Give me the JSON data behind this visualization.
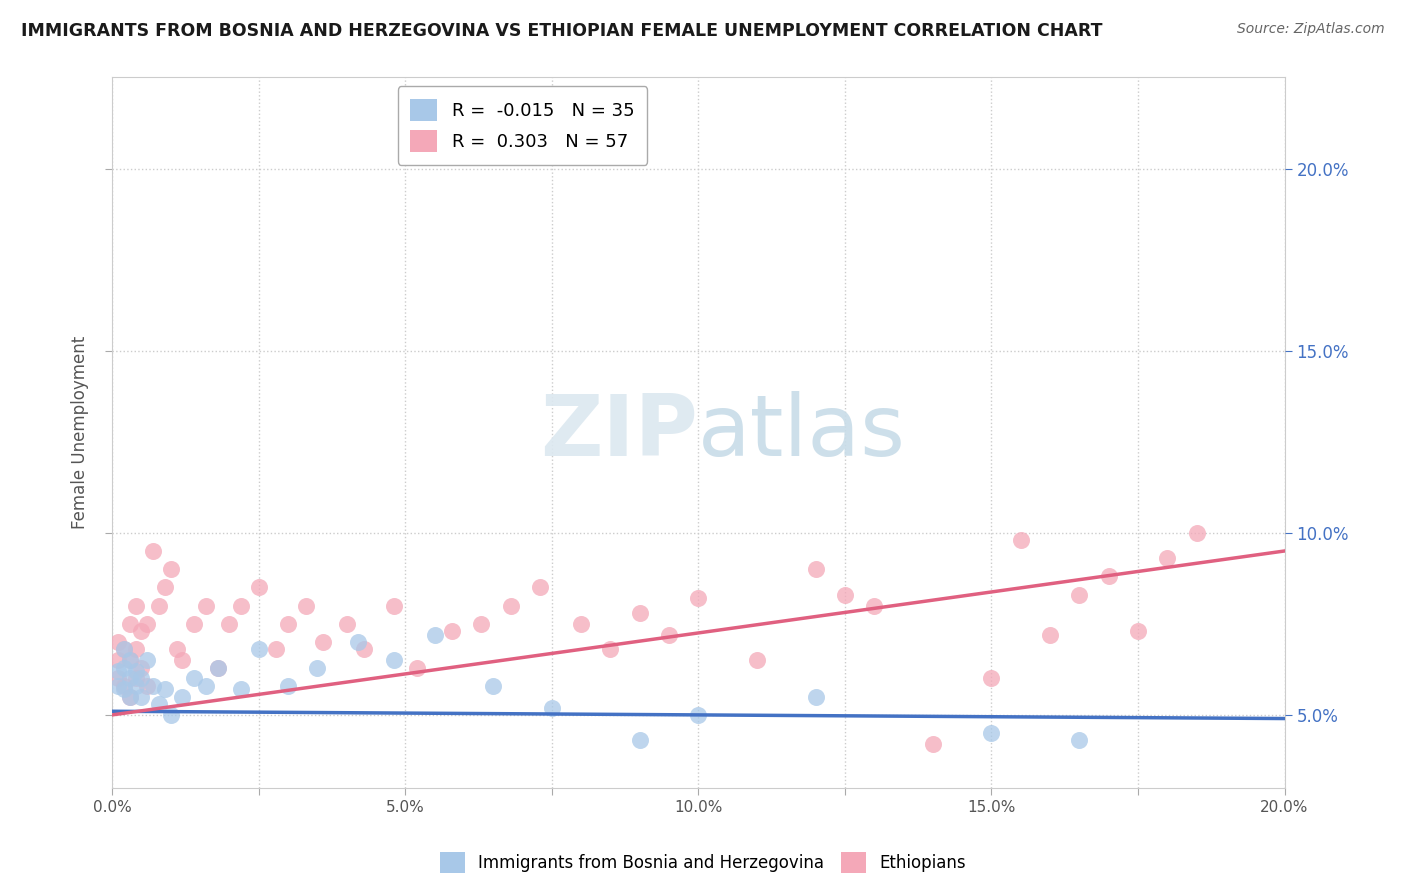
{
  "title": "IMMIGRANTS FROM BOSNIA AND HERZEGOVINA VS ETHIOPIAN FEMALE UNEMPLOYMENT CORRELATION CHART",
  "source": "Source: ZipAtlas.com",
  "ylabel": "Female Unemployment",
  "legend_label_1": "Immigrants from Bosnia and Herzegovina",
  "legend_label_2": "Ethiopians",
  "R1": -0.015,
  "N1": 35,
  "R2": 0.303,
  "N2": 57,
  "color1": "#a8c8e8",
  "color2": "#f4a8b8",
  "line_color1": "#4472c4",
  "line_color2": "#e06080",
  "xlim": [
    0.0,
    0.2
  ],
  "ylim": [
    0.03,
    0.225
  ],
  "yticks": [
    0.05,
    0.1,
    0.15,
    0.2
  ],
  "xticks": [
    0.0,
    0.025,
    0.05,
    0.075,
    0.1,
    0.125,
    0.15,
    0.175,
    0.2
  ],
  "xtick_labels": [
    "0.0%",
    "",
    "5.0%",
    "",
    "10.0%",
    "",
    "15.0%",
    "",
    "20.0%"
  ],
  "blue_x": [
    0.001,
    0.001,
    0.002,
    0.002,
    0.002,
    0.003,
    0.003,
    0.003,
    0.004,
    0.004,
    0.005,
    0.005,
    0.006,
    0.007,
    0.008,
    0.009,
    0.01,
    0.012,
    0.014,
    0.016,
    0.018,
    0.022,
    0.025,
    0.03,
    0.035,
    0.042,
    0.048,
    0.055,
    0.065,
    0.075,
    0.09,
    0.1,
    0.12,
    0.15,
    0.165
  ],
  "blue_y": [
    0.058,
    0.062,
    0.057,
    0.063,
    0.068,
    0.06,
    0.055,
    0.065,
    0.058,
    0.062,
    0.055,
    0.06,
    0.065,
    0.058,
    0.053,
    0.057,
    0.05,
    0.055,
    0.06,
    0.058,
    0.063,
    0.057,
    0.068,
    0.058,
    0.063,
    0.07,
    0.065,
    0.072,
    0.058,
    0.052,
    0.043,
    0.05,
    0.055,
    0.045,
    0.043
  ],
  "pink_x": [
    0.001,
    0.001,
    0.001,
    0.002,
    0.002,
    0.003,
    0.003,
    0.003,
    0.004,
    0.004,
    0.004,
    0.005,
    0.005,
    0.006,
    0.006,
    0.007,
    0.008,
    0.009,
    0.01,
    0.011,
    0.012,
    0.014,
    0.016,
    0.018,
    0.02,
    0.022,
    0.025,
    0.028,
    0.03,
    0.033,
    0.036,
    0.04,
    0.043,
    0.048,
    0.052,
    0.058,
    0.063,
    0.068,
    0.073,
    0.08,
    0.085,
    0.09,
    0.095,
    0.1,
    0.11,
    0.12,
    0.125,
    0.13,
    0.14,
    0.15,
    0.155,
    0.16,
    0.165,
    0.17,
    0.175,
    0.18,
    0.185
  ],
  "pink_y": [
    0.06,
    0.065,
    0.07,
    0.058,
    0.068,
    0.055,
    0.065,
    0.075,
    0.06,
    0.068,
    0.08,
    0.063,
    0.073,
    0.058,
    0.075,
    0.095,
    0.08,
    0.085,
    0.09,
    0.068,
    0.065,
    0.075,
    0.08,
    0.063,
    0.075,
    0.08,
    0.085,
    0.068,
    0.075,
    0.08,
    0.07,
    0.075,
    0.068,
    0.08,
    0.063,
    0.073,
    0.075,
    0.08,
    0.085,
    0.075,
    0.068,
    0.078,
    0.072,
    0.082,
    0.065,
    0.09,
    0.083,
    0.08,
    0.042,
    0.06,
    0.098,
    0.072,
    0.083,
    0.088,
    0.073,
    0.093,
    0.1
  ],
  "blue_line_x": [
    0.0,
    0.2
  ],
  "blue_line_y": [
    0.051,
    0.049
  ],
  "pink_line_x": [
    0.0,
    0.2
  ],
  "pink_line_y": [
    0.05,
    0.095
  ]
}
